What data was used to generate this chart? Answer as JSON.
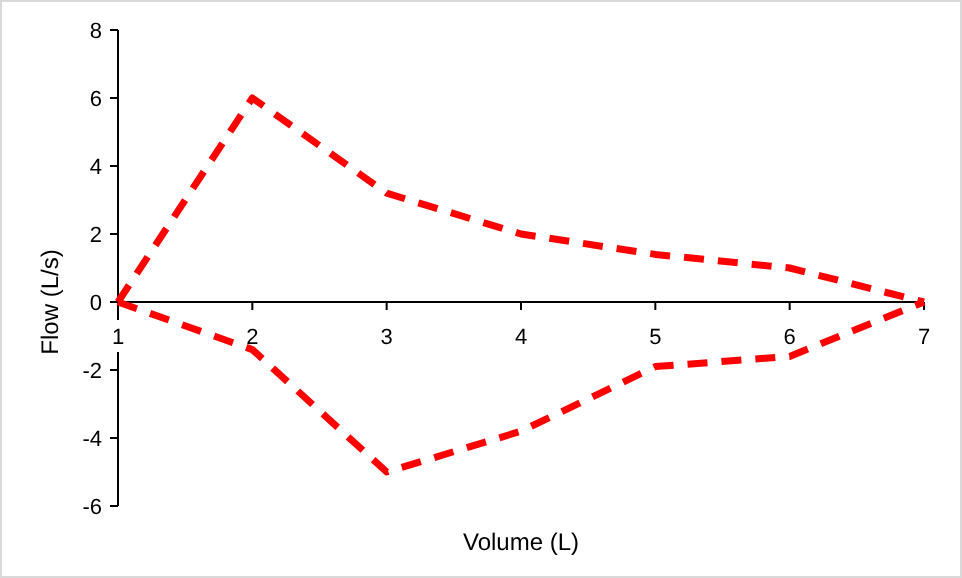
{
  "chart_data": {
    "type": "line",
    "xlabel": "Volume (L)",
    "ylabel": "Flow (L/s)",
    "xlim": [
      1,
      7
    ],
    "xticks": [
      1,
      2,
      3,
      4,
      5,
      6,
      7
    ],
    "ylim": [
      -6,
      8
    ],
    "yticks": [
      -6,
      -4,
      -2,
      0,
      2,
      4,
      6,
      8
    ],
    "grid": false,
    "marker": "none",
    "line_style": "dashed",
    "series": [
      {
        "color": "#ff0000",
        "x": [
          1,
          2,
          3,
          4,
          5,
          6,
          7
        ],
        "values": [
          0,
          6,
          3.2,
          2,
          1.4,
          1,
          0
        ]
      },
      {
        "color": "#ff0000",
        "x": [
          1,
          2,
          3,
          4,
          5,
          6,
          7
        ],
        "values": [
          0,
          -1.4,
          -5,
          -3.8,
          -1.9,
          -1.6,
          0
        ]
      }
    ]
  }
}
